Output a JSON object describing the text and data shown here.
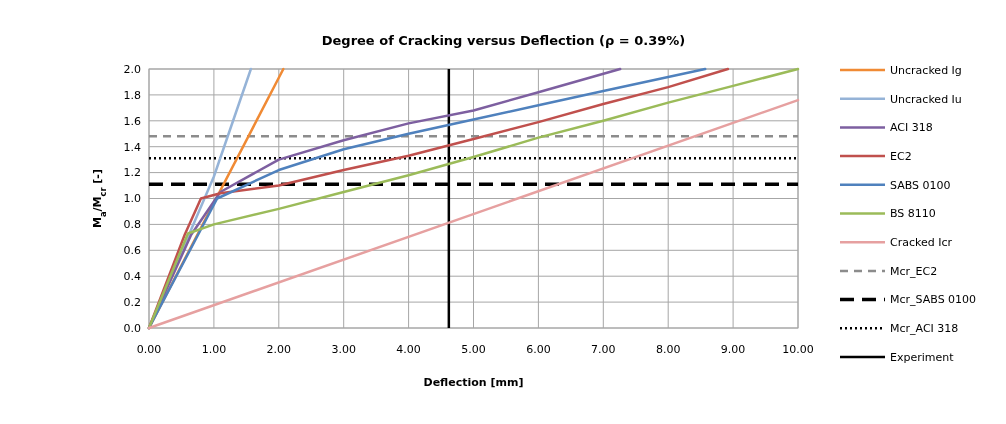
{
  "chart_data": {
    "type": "line",
    "title": "Degree of Cracking versus Deflection  (ρ = 0.39%)",
    "xlabel": "Deflection [mm]",
    "ylabel": "M$_{a}$/M$_{cr}$ [-]",
    "xlim": [
      0,
      10
    ],
    "ylim": [
      0,
      2
    ],
    "xticks": [
      {
        "value": 0,
        "label": "0.00"
      },
      {
        "value": 1,
        "label": "1.00"
      },
      {
        "value": 2,
        "label": "2.00"
      },
      {
        "value": 3,
        "label": "3.00"
      },
      {
        "value": 4,
        "label": "4.00"
      },
      {
        "value": 5,
        "label": "5.00"
      },
      {
        "value": 6,
        "label": "6.00"
      },
      {
        "value": 7,
        "label": "7.00"
      },
      {
        "value": 8,
        "label": "8.00"
      },
      {
        "value": 9,
        "label": "9.00"
      },
      {
        "value": 10,
        "label": "10.00"
      }
    ],
    "yticks": [
      {
        "value": 0,
        "label": "0.0"
      },
      {
        "value": 0.2,
        "label": "0.2"
      },
      {
        "value": 0.4,
        "label": "0.4"
      },
      {
        "value": 0.6,
        "label": "0.6"
      },
      {
        "value": 0.8,
        "label": "0.8"
      },
      {
        "value": 1,
        "label": "1.0"
      },
      {
        "value": 1.2,
        "label": "1.2"
      },
      {
        "value": 1.4,
        "label": "1.4"
      },
      {
        "value": 1.6,
        "label": "1.6"
      },
      {
        "value": 1.8,
        "label": "1.8"
      },
      {
        "value": 2,
        "label": "2.0"
      }
    ],
    "grid": true,
    "legend": "right",
    "marker": "none",
    "line_style": "solid",
    "series": [
      {
        "name": "Uncracked Ig",
        "color": "#f08a34",
        "x": [
          0,
          2.07
        ],
        "values": [
          0,
          2.0
        ]
      },
      {
        "name": "Uncracked Iu",
        "color": "#95b3d7",
        "x": [
          0,
          1.0,
          1.57
        ],
        "values": [
          0,
          1.17,
          2.0
        ]
      },
      {
        "name": "ACI 318",
        "color": "#7d5fa0",
        "x": [
          0,
          0.65,
          1.1,
          2,
          3,
          4,
          5,
          6,
          7.26
        ],
        "values": [
          0,
          0.72,
          1.05,
          1.3,
          1.45,
          1.58,
          1.68,
          1.82,
          2.0
        ]
      },
      {
        "name": "EC2",
        "color": "#c0504d",
        "x": [
          0,
          0.55,
          0.8,
          1.1,
          2,
          3,
          4,
          5,
          6,
          7,
          8,
          8.92
        ],
        "values": [
          0,
          0.72,
          1.0,
          1.04,
          1.1,
          1.22,
          1.33,
          1.46,
          1.59,
          1.73,
          1.86,
          2.0
        ]
      },
      {
        "name": "SABS 0100",
        "color": "#4f81bd",
        "x": [
          0,
          1.05,
          2,
          3,
          4,
          5,
          6,
          7,
          8.57
        ],
        "values": [
          0,
          1.0,
          1.22,
          1.38,
          1.5,
          1.61,
          1.72,
          1.83,
          2.0
        ]
      },
      {
        "name": "BS 8110",
        "color": "#9bbb59",
        "x": [
          0,
          0.6,
          1,
          2,
          3,
          4,
          5,
          6,
          7,
          8,
          9,
          10
        ],
        "values": [
          0,
          0.73,
          0.8,
          0.92,
          1.05,
          1.18,
          1.32,
          1.47,
          1.6,
          1.74,
          1.87,
          2.0
        ]
      },
      {
        "name": "Cracked Icr",
        "color": "#e6a0a0",
        "x": [
          0,
          10
        ],
        "values": [
          0,
          1.76
        ]
      }
    ],
    "ref_lines": [
      {
        "axis": "y",
        "value": 1.48,
        "label": "Mcr_EC2",
        "color": "#8c8c8c",
        "line_style": "dashed"
      },
      {
        "axis": "y",
        "value": 1.11,
        "label": "Mcr_SABS 0100",
        "color": "#000000",
        "line_style": "dashed"
      },
      {
        "axis": "y",
        "value": 1.31,
        "label": "Mcr_ACI 318",
        "color": "#000000",
        "line_style": "dotted"
      },
      {
        "axis": "x",
        "value": 4.62,
        "label": "Experiment",
        "color": "#000000",
        "line_style": "solid"
      }
    ]
  }
}
